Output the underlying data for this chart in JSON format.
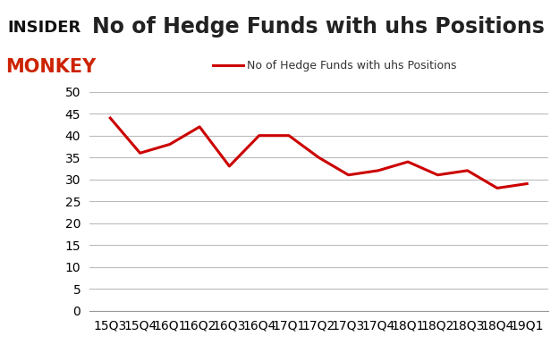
{
  "x_labels": [
    "15Q3",
    "15Q4",
    "16Q1",
    "16Q2",
    "16Q3",
    "16Q4",
    "17Q1",
    "17Q2",
    "17Q3",
    "17Q4",
    "18Q1",
    "18Q2",
    "18Q3",
    "18Q4",
    "19Q1"
  ],
  "y_values": [
    44,
    36,
    38,
    42,
    33,
    40,
    40,
    35,
    31,
    32,
    34,
    31,
    32,
    28,
    29
  ],
  "line_color": "#cc0000",
  "line_width": 2.2,
  "title": "No of Hedge Funds with uhs Positions",
  "title_fontsize": 17,
  "legend_label": "No of Hedge Funds with uhs Positions",
  "ylim": [
    0,
    50
  ],
  "yticks": [
    0,
    5,
    10,
    15,
    20,
    25,
    30,
    35,
    40,
    45,
    50
  ],
  "background_color": "#ffffff",
  "grid_color": "#bbbbbb",
  "axis_label_fontsize": 10,
  "legend_fontsize": 9,
  "logo_insider_color": "#111111",
  "logo_monkey_color": "#cc2200",
  "logo_insider_size": 13,
  "logo_monkey_size": 15
}
